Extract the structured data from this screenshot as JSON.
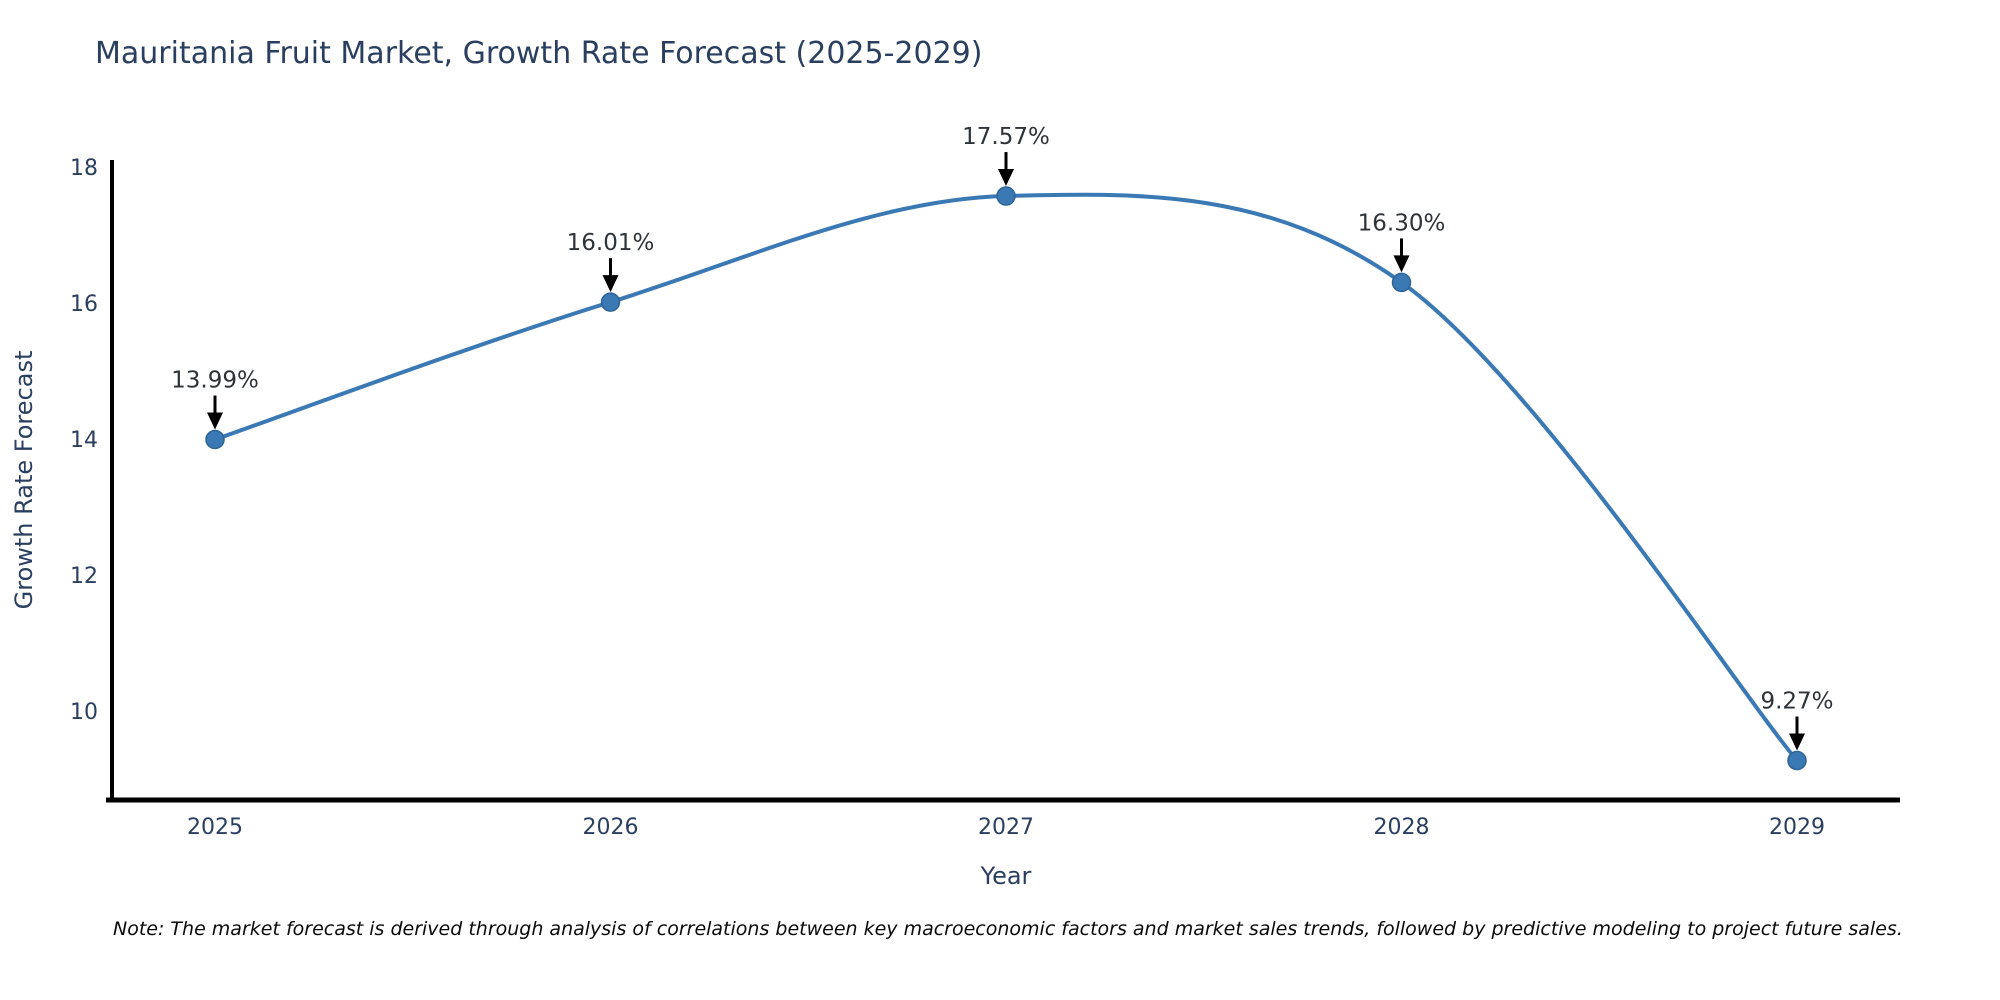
{
  "title": "Mauritania Fruit Market, Growth Rate Forecast (2025-2029)",
  "note": "Note: The market forecast is derived through analysis of correlations between key macroeconomic factors and market sales trends, followed by predictive modeling to project future sales.",
  "chart_data": {
    "type": "line",
    "title": "Mauritania Fruit Market, Growth Rate Forecast (2025-2029)",
    "xlabel": "Year",
    "ylabel": "Growth Rate Forecast",
    "x": [
      2025,
      2026,
      2027,
      2028,
      2029
    ],
    "values": [
      13.99,
      16.01,
      17.57,
      16.3,
      9.27
    ],
    "point_labels": [
      "13.99%",
      "16.01%",
      "17.57%",
      "16.30%",
      "9.27%"
    ],
    "y_ticks": [
      10,
      12,
      14,
      16,
      18
    ],
    "ylim": [
      8.69,
      18.1
    ],
    "line_shape": "spline",
    "grid": false,
    "legend_position": "none",
    "colors": {
      "line": "#3b79b5",
      "marker": "#3b79b5",
      "marker_edge": "#2f6496",
      "axis_line": "#000000",
      "tick_text": "#2a3f5f",
      "axis_title_text": "#2a3f5f",
      "annotation_text": "#2e3338",
      "annotation_arrow": "#000000",
      "background": "#ffffff"
    }
  }
}
